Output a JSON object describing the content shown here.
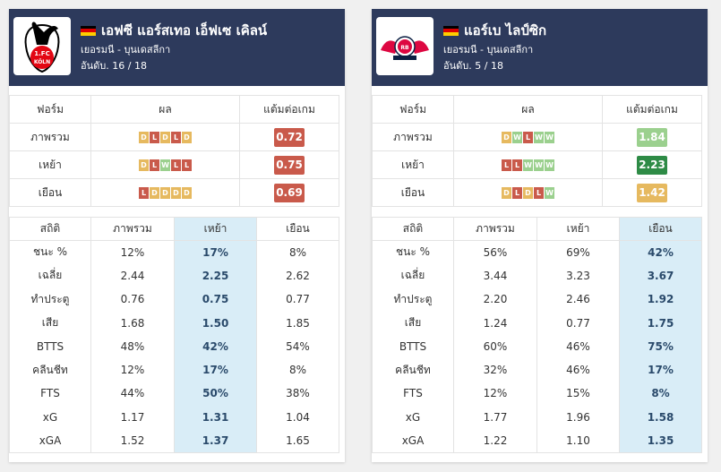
{
  "colors": {
    "W": "#9bd08e",
    "D": "#e6b95f",
    "L": "#c95a4b",
    "header_bg": "#2d3a5c",
    "highlight_bg": "#d9edf7"
  },
  "form_headers": {
    "form": "ฟอร์ม",
    "result": "ผล",
    "ppg": "แต้มต่อเกม"
  },
  "stats_headers": {
    "stat": "สถิติ",
    "overall": "ภาพรวม",
    "home": "เหย้า",
    "away": "เยือน"
  },
  "teams": [
    {
      "name": "เอฟซี แอร์สเทอ เอ็ฟเซ เคิลน์",
      "league": "เยอรมนี - บุนเดสลีกา",
      "rank": "อันดับ. 16 / 18",
      "logo_icon": "koln-goat-crest-icon",
      "highlight_col": 2,
      "form": [
        {
          "label": "ภาพรวม",
          "results": [
            "D",
            "L",
            "D",
            "L",
            "D"
          ],
          "ppg": "0.72",
          "ppg_color": "#c95a4b"
        },
        {
          "label": "เหย้า",
          "results": [
            "D",
            "L",
            "W",
            "L",
            "L"
          ],
          "ppg": "0.75",
          "ppg_color": "#c95a4b"
        },
        {
          "label": "เยือน",
          "results": [
            "L",
            "D",
            "D",
            "D",
            "D"
          ],
          "ppg": "0.69",
          "ppg_color": "#c95a4b"
        }
      ],
      "stats": [
        {
          "label": "ชนะ %",
          "values": [
            "12%",
            "17%",
            "8%"
          ]
        },
        {
          "label": "เฉลี่ย",
          "values": [
            "2.44",
            "2.25",
            "2.62"
          ]
        },
        {
          "label": "ทำประตู",
          "values": [
            "0.76",
            "0.75",
            "0.77"
          ]
        },
        {
          "label": "เสีย",
          "values": [
            "1.68",
            "1.50",
            "1.85"
          ]
        },
        {
          "label": "BTTS",
          "values": [
            "48%",
            "42%",
            "54%"
          ]
        },
        {
          "label": "คลีนชีท",
          "values": [
            "12%",
            "17%",
            "8%"
          ]
        },
        {
          "label": "FTS",
          "values": [
            "44%",
            "50%",
            "38%"
          ]
        },
        {
          "label": "xG",
          "values": [
            "1.17",
            "1.31",
            "1.04"
          ]
        },
        {
          "label": "xGA",
          "values": [
            "1.52",
            "1.37",
            "1.65"
          ]
        }
      ]
    },
    {
      "name": "แอร์เบ ไลป์ซิก",
      "league": "เยอรมนี - บุนเดสลีกา",
      "rank": "อันดับ. 5 / 18",
      "logo_icon": "rb-leipzig-bulls-crest-icon",
      "highlight_col": 3,
      "form": [
        {
          "label": "ภาพรวม",
          "results": [
            "D",
            "W",
            "L",
            "W",
            "W"
          ],
          "ppg": "1.84",
          "ppg_color": "#9bd08e"
        },
        {
          "label": "เหย้า",
          "results": [
            "L",
            "L",
            "W",
            "W",
            "W"
          ],
          "ppg": "2.23",
          "ppg_color": "#2e8b46"
        },
        {
          "label": "เยือน",
          "results": [
            "D",
            "L",
            "D",
            "L",
            "W"
          ],
          "ppg": "1.42",
          "ppg_color": "#e6b95f"
        }
      ],
      "stats": [
        {
          "label": "ชนะ %",
          "values": [
            "56%",
            "69%",
            "42%"
          ]
        },
        {
          "label": "เฉลี่ย",
          "values": [
            "3.44",
            "3.23",
            "3.67"
          ]
        },
        {
          "label": "ทำประตู",
          "values": [
            "2.20",
            "2.46",
            "1.92"
          ]
        },
        {
          "label": "เสีย",
          "values": [
            "1.24",
            "0.77",
            "1.75"
          ]
        },
        {
          "label": "BTTS",
          "values": [
            "60%",
            "46%",
            "75%"
          ]
        },
        {
          "label": "คลีนชีท",
          "values": [
            "32%",
            "46%",
            "17%"
          ]
        },
        {
          "label": "FTS",
          "values": [
            "12%",
            "15%",
            "8%"
          ]
        },
        {
          "label": "xG",
          "values": [
            "1.77",
            "1.96",
            "1.58"
          ]
        },
        {
          "label": "xGA",
          "values": [
            "1.22",
            "1.10",
            "1.35"
          ]
        }
      ]
    }
  ]
}
